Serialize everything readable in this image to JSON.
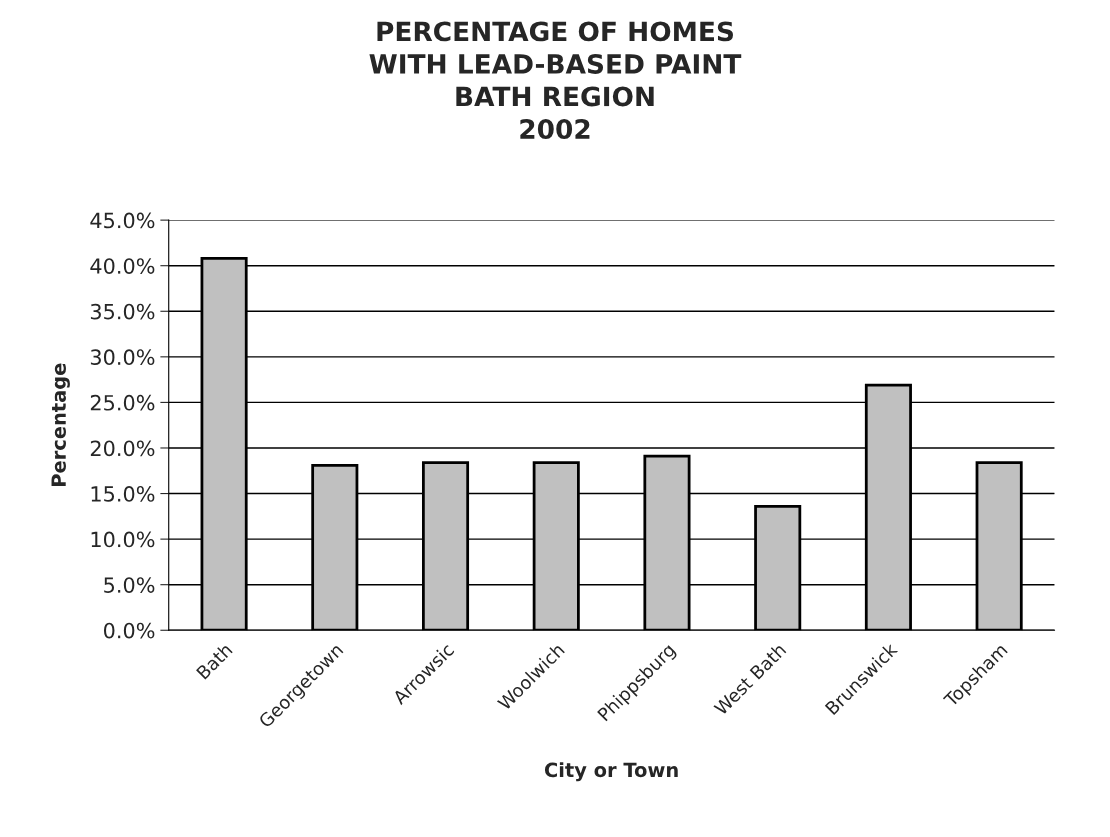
{
  "chart_data": {
    "type": "bar",
    "title": "PERCENTAGE OF HOMES\nWITH LEAD-BASED PAINT\nBATH REGION\n2002",
    "xlabel": "City or Town",
    "ylabel": "Percentage",
    "categories": [
      "Bath",
      "Georgetown",
      "Arrowsic",
      "Woolwich",
      "Phippsburg",
      "West Bath",
      "Brunswick",
      "Topsham"
    ],
    "values": [
      40.8,
      18.1,
      18.4,
      18.4,
      19.1,
      13.6,
      26.9,
      18.4
    ],
    "color": "#c0c0c0",
    "ylim": [
      0,
      45
    ],
    "yticks": [
      {
        "value": 0,
        "label": "0.0%"
      },
      {
        "value": 5,
        "label": "5.0%"
      },
      {
        "value": 10,
        "label": "10.0%"
      },
      {
        "value": 15,
        "label": "15.0%"
      },
      {
        "value": 20,
        "label": "20.0%"
      },
      {
        "value": 25,
        "label": "25.0%"
      },
      {
        "value": 30,
        "label": "30.0%"
      },
      {
        "value": 35,
        "label": "35.0%"
      },
      {
        "value": 40,
        "label": "40.0%"
      },
      {
        "value": 45,
        "label": "45.0%"
      }
    ],
    "grid": "y",
    "legend": false
  }
}
